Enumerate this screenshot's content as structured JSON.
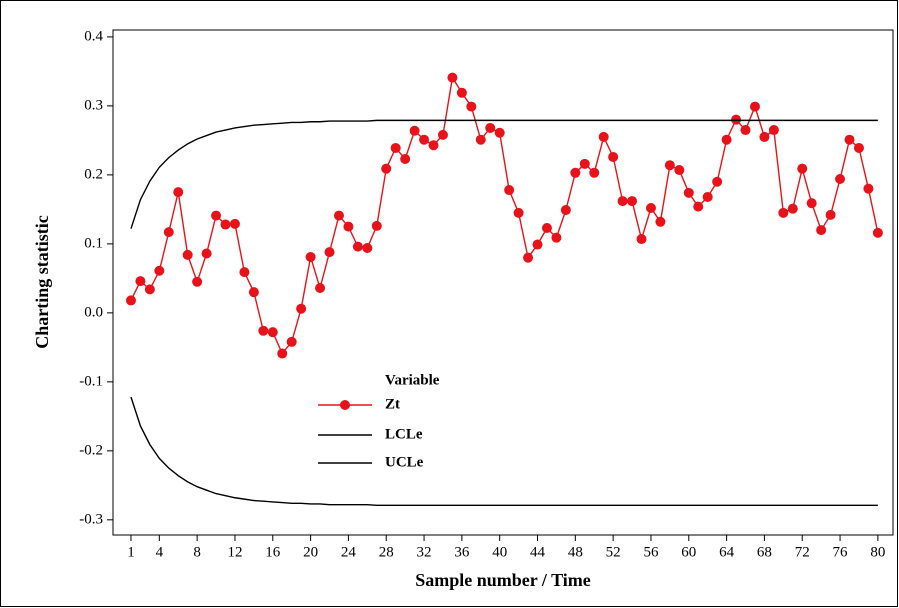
{
  "chart_data": {
    "type": "line",
    "xlabel": "Sample number / Time",
    "ylabel": "Charting statistic",
    "legend_title": "Variable",
    "x": [
      1,
      2,
      3,
      4,
      5,
      6,
      7,
      8,
      9,
      10,
      11,
      12,
      13,
      14,
      15,
      16,
      17,
      18,
      19,
      20,
      21,
      22,
      23,
      24,
      25,
      26,
      27,
      28,
      29,
      30,
      31,
      32,
      33,
      34,
      35,
      36,
      37,
      38,
      39,
      40,
      41,
      42,
      43,
      44,
      45,
      46,
      47,
      48,
      49,
      50,
      51,
      52,
      53,
      54,
      55,
      56,
      57,
      58,
      59,
      60,
      61,
      62,
      63,
      64,
      65,
      66,
      67,
      68,
      69,
      70,
      71,
      72,
      73,
      74,
      75,
      76,
      77,
      78,
      79,
      80
    ],
    "series": [
      {
        "name": "Zt",
        "color": "#e8121a",
        "markers": true,
        "values": [
          0.018,
          0.046,
          0.034,
          0.061,
          0.117,
          0.175,
          0.084,
          0.045,
          0.086,
          0.141,
          0.128,
          0.129,
          0.059,
          0.03,
          -0.026,
          -0.028,
          -0.059,
          -0.042,
          0.006,
          0.081,
          0.036,
          0.088,
          0.141,
          0.125,
          0.096,
          0.094,
          0.126,
          0.209,
          0.239,
          0.223,
          0.264,
          0.251,
          0.243,
          0.258,
          0.341,
          0.319,
          0.299,
          0.251,
          0.268,
          0.261,
          0.178,
          0.145,
          0.08,
          0.099,
          0.123,
          0.109,
          0.149,
          0.203,
          0.216,
          0.203,
          0.255,
          0.226,
          0.162,
          0.162,
          0.107,
          0.152,
          0.132,
          0.214,
          0.207,
          0.174,
          0.154,
          0.168,
          0.19,
          0.251,
          0.28,
          0.265,
          0.299,
          0.255,
          0.265,
          0.145,
          0.151,
          0.209,
          0.159,
          0.12,
          0.142,
          0.194,
          0.251,
          0.239,
          0.18,
          0.116
        ]
      },
      {
        "name": "LCLe",
        "color": "#000000",
        "markers": false,
        "values": [
          -0.122,
          -0.164,
          -0.191,
          -0.211,
          -0.225,
          -0.236,
          -0.245,
          -0.252,
          -0.257,
          -0.262,
          -0.265,
          -0.268,
          -0.27,
          -0.272,
          -0.273,
          -0.274,
          -0.275,
          -0.276,
          -0.276,
          -0.277,
          -0.277,
          -0.278,
          -0.278,
          -0.278,
          -0.278,
          -0.278,
          -0.279,
          -0.279,
          -0.279,
          -0.279,
          -0.279,
          -0.279,
          -0.279,
          -0.279,
          -0.279,
          -0.279,
          -0.279,
          -0.279,
          -0.279,
          -0.279,
          -0.279,
          -0.279,
          -0.279,
          -0.279,
          -0.279,
          -0.279,
          -0.279,
          -0.279,
          -0.279,
          -0.279,
          -0.279,
          -0.279,
          -0.279,
          -0.279,
          -0.279,
          -0.279,
          -0.279,
          -0.279,
          -0.279,
          -0.279,
          -0.279,
          -0.279,
          -0.279,
          -0.279,
          -0.279,
          -0.279,
          -0.279,
          -0.279,
          -0.279,
          -0.279,
          -0.279,
          -0.279,
          -0.279,
          -0.279,
          -0.279,
          -0.279,
          -0.279,
          -0.279,
          -0.279,
          -0.279
        ]
      },
      {
        "name": "UCLe",
        "color": "#000000",
        "markers": false,
        "values": [
          0.122,
          0.164,
          0.191,
          0.211,
          0.225,
          0.236,
          0.245,
          0.252,
          0.257,
          0.262,
          0.265,
          0.268,
          0.27,
          0.272,
          0.273,
          0.274,
          0.275,
          0.276,
          0.276,
          0.277,
          0.277,
          0.278,
          0.278,
          0.278,
          0.278,
          0.278,
          0.279,
          0.279,
          0.279,
          0.279,
          0.279,
          0.279,
          0.279,
          0.279,
          0.279,
          0.279,
          0.279,
          0.279,
          0.279,
          0.279,
          0.279,
          0.279,
          0.279,
          0.279,
          0.279,
          0.279,
          0.279,
          0.279,
          0.279,
          0.279,
          0.279,
          0.279,
          0.279,
          0.279,
          0.279,
          0.279,
          0.279,
          0.279,
          0.279,
          0.279,
          0.279,
          0.279,
          0.279,
          0.279,
          0.279,
          0.279,
          0.279,
          0.279,
          0.279,
          0.279,
          0.279,
          0.279,
          0.279,
          0.279,
          0.279,
          0.279,
          0.279,
          0.279,
          0.279,
          0.279
        ]
      }
    ],
    "xlim": [
      -0.9,
      81.6
    ],
    "xticks": [
      1,
      4,
      8,
      12,
      16,
      20,
      24,
      28,
      32,
      36,
      40,
      44,
      48,
      52,
      56,
      60,
      64,
      68,
      72,
      76,
      80
    ],
    "ylim": [
      -0.322,
      0.41
    ],
    "yticks": [
      -0.3,
      -0.2,
      -0.1,
      {
        "value": 0,
        "label": "0.0"
      },
      0.1,
      0.2,
      0.3,
      0.4
    ],
    "grid": false
  }
}
